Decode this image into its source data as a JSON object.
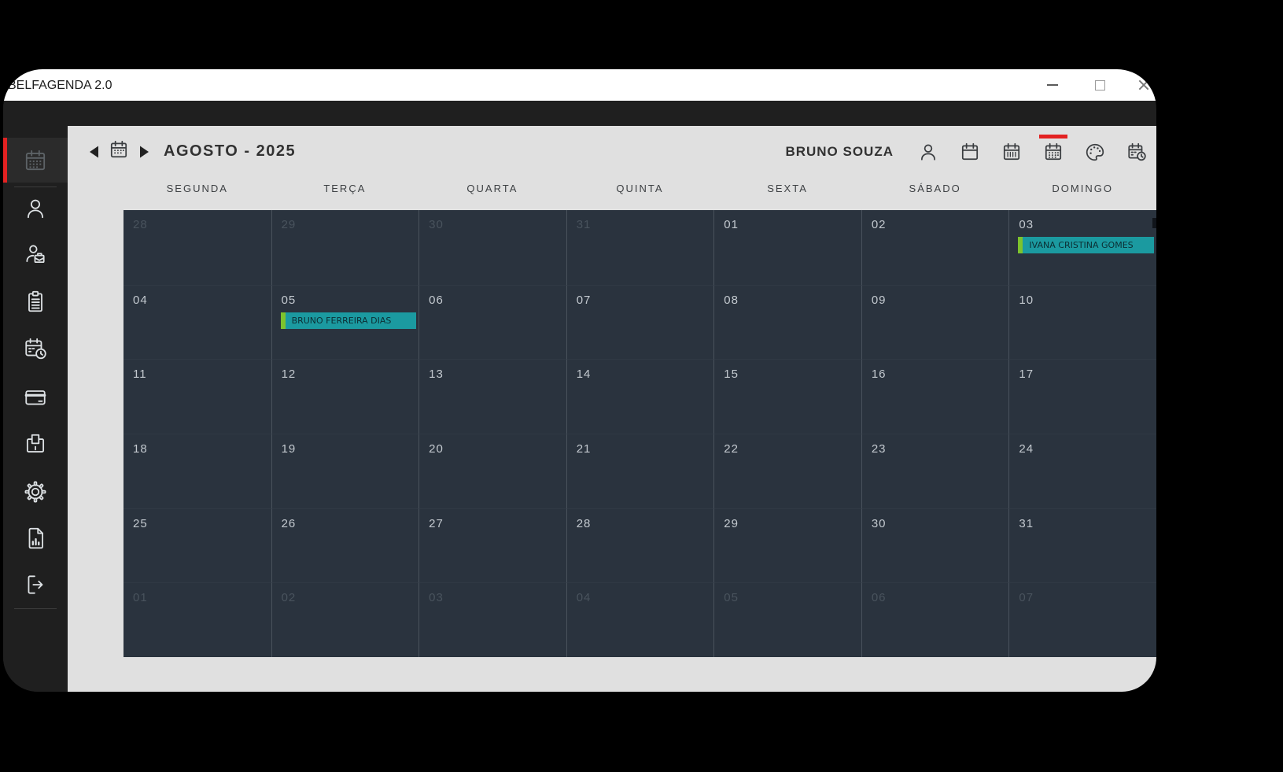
{
  "window": {
    "title": "BELFAGENDA 2.0",
    "controls": [
      "minimize-icon",
      "maximize-icon",
      "close-icon"
    ]
  },
  "sidebar": {
    "items": [
      {
        "icon": "calendar-month-icon",
        "active": true
      },
      {
        "icon": "person-icon"
      },
      {
        "icon": "client-icon"
      },
      {
        "icon": "tasks-icon"
      },
      {
        "icon": "calendar-clock-icon"
      },
      {
        "icon": "credit-card-icon"
      },
      {
        "icon": "payment-terminal-icon"
      },
      {
        "icon": "settings-icon"
      },
      {
        "icon": "report-icon"
      },
      {
        "icon": "logout-icon"
      }
    ]
  },
  "header": {
    "month_title": "AGOSTO - 2025",
    "user_name": "BRUNO SOUZA",
    "nav_icons": [
      "previous-month-icon",
      "calendar-picker-icon",
      "next-month-icon"
    ],
    "view_icons": [
      "user-icon",
      "day-view-icon",
      "week-view-icon",
      "month-view-icon",
      "theme-palette-icon",
      "schedule-icon"
    ],
    "active_view": "month-view-icon"
  },
  "calendar": {
    "day_headers": [
      "SEGUNDA",
      "TERÇA",
      "QUARTA",
      "QUINTA",
      "SEXTA",
      "SÁBADO",
      "DOMINGO"
    ],
    "weeks": [
      [
        {
          "day": "28",
          "other_month": true
        },
        {
          "day": "29",
          "other_month": true
        },
        {
          "day": "30",
          "other_month": true
        },
        {
          "day": "31",
          "other_month": true
        },
        {
          "day": "01"
        },
        {
          "day": "02"
        },
        {
          "day": "03",
          "event": "IVANA CRISTINA GOMES"
        }
      ],
      [
        {
          "day": "04"
        },
        {
          "day": "05",
          "event": "BRUNO FERREIRA DIAS"
        },
        {
          "day": "06"
        },
        {
          "day": "07"
        },
        {
          "day": "08"
        },
        {
          "day": "09"
        },
        {
          "day": "10"
        }
      ],
      [
        {
          "day": "11"
        },
        {
          "day": "12"
        },
        {
          "day": "13"
        },
        {
          "day": "14"
        },
        {
          "day": "15"
        },
        {
          "day": "16"
        },
        {
          "day": "17"
        }
      ],
      [
        {
          "day": "18"
        },
        {
          "day": "19"
        },
        {
          "day": "20"
        },
        {
          "day": "21"
        },
        {
          "day": "22"
        },
        {
          "day": "23"
        },
        {
          "day": "24"
        }
      ],
      [
        {
          "day": "25"
        },
        {
          "day": "26"
        },
        {
          "day": "27"
        },
        {
          "day": "28"
        },
        {
          "day": "29"
        },
        {
          "day": "30"
        },
        {
          "day": "31"
        }
      ],
      [
        {
          "day": "01",
          "other_month": true
        },
        {
          "day": "02",
          "other_month": true
        },
        {
          "day": "03",
          "other_month": true
        },
        {
          "day": "04",
          "other_month": true
        },
        {
          "day": "05",
          "other_month": true
        },
        {
          "day": "06",
          "other_month": true
        },
        {
          "day": "07",
          "other_month": true
        }
      ]
    ]
  },
  "colors": {
    "accent_red": "#e32222",
    "event_bg": "#1b9aa0",
    "event_accent": "#7dc32d",
    "cell_bg": "#2a333e",
    "surface": "#e0e0e0",
    "chrome_dark": "#1f1f1f"
  }
}
